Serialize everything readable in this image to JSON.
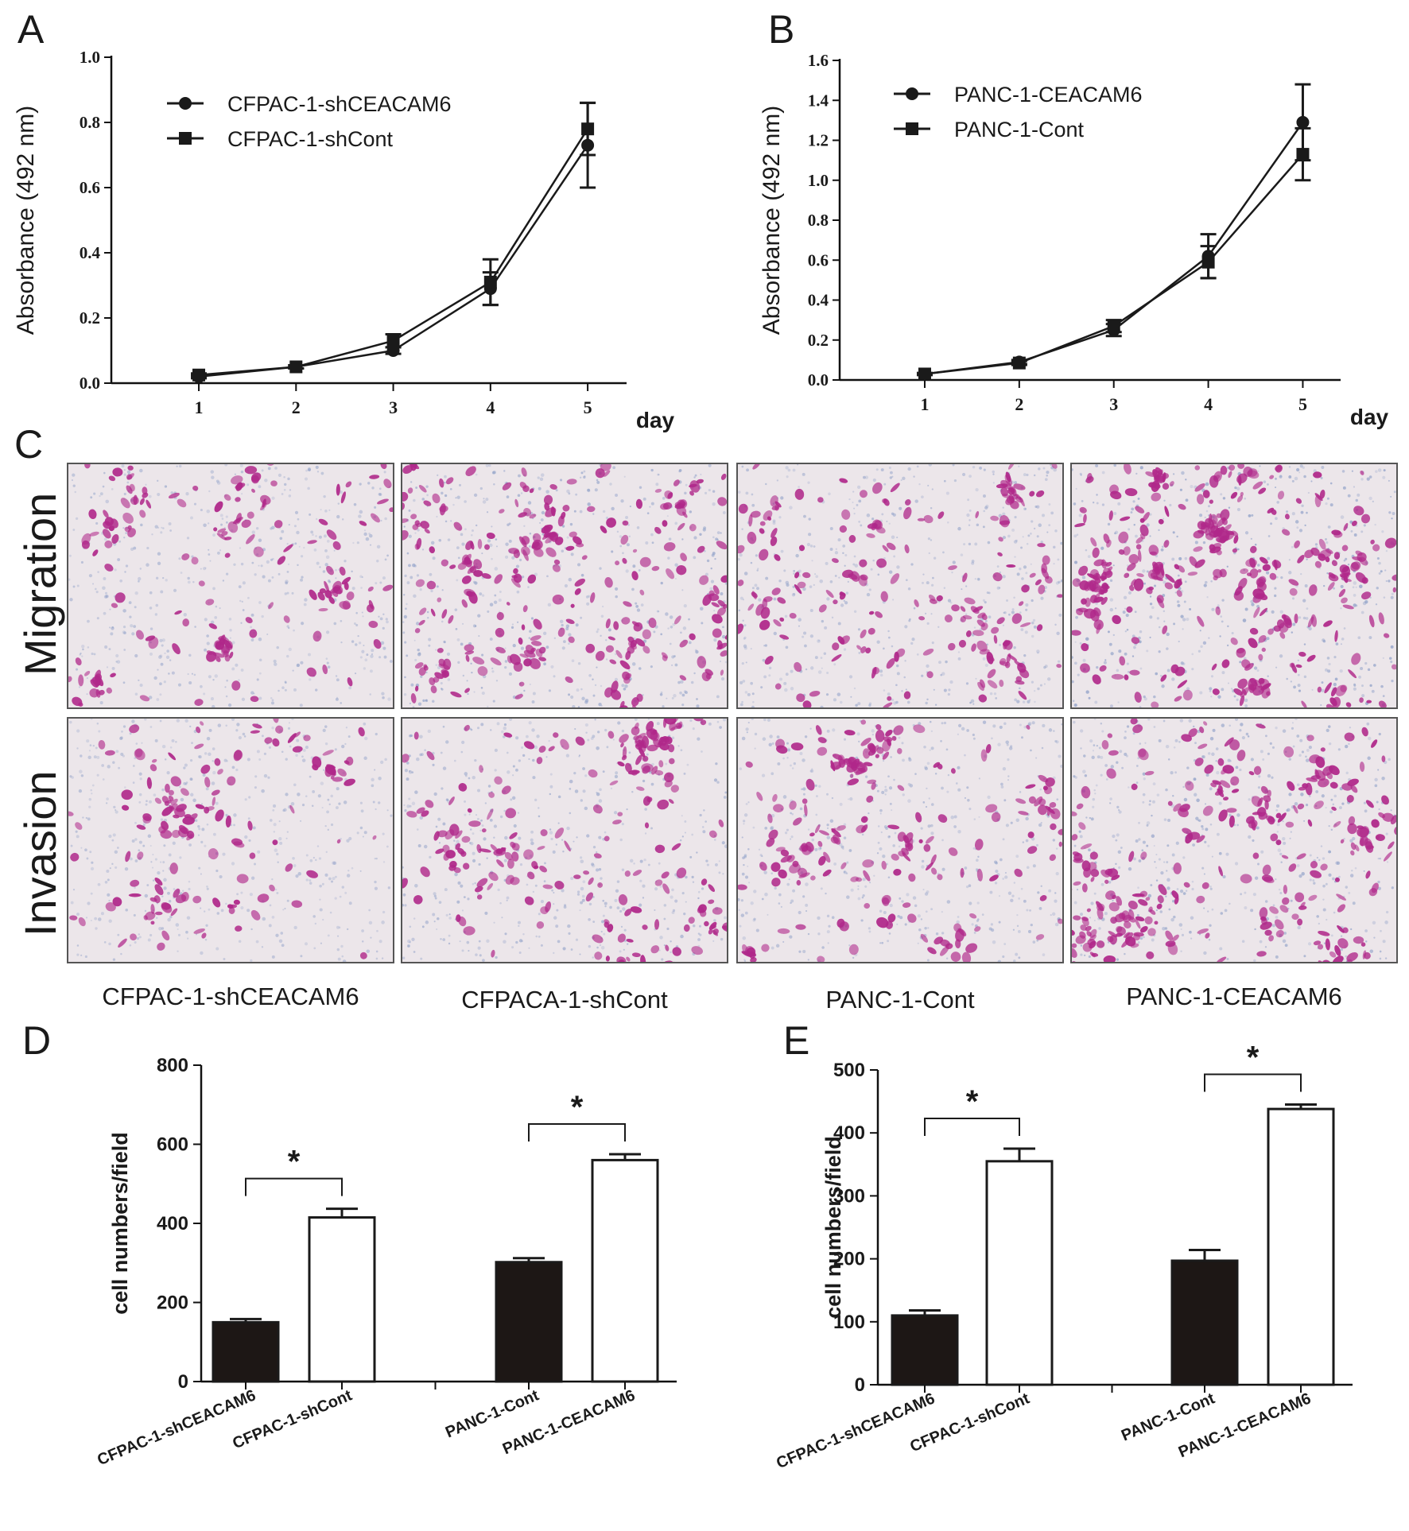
{
  "panels": {
    "A": {
      "letter": "A"
    },
    "B": {
      "letter": "B"
    },
    "C": {
      "letter": "C"
    },
    "D": {
      "letter": "D"
    },
    "E": {
      "letter": "E"
    }
  },
  "panel_c": {
    "rows": [
      "Migration",
      "Invasion"
    ],
    "columns": [
      "CFPAC-1-shCEACAM6",
      "CFPACA-1-shCont",
      "PANC-1-Cont",
      "PANC-1-CEACAM6"
    ],
    "stain_colors": {
      "background": "#ece6ea",
      "cell": "#b0288a",
      "membrane": "#8fa0c8"
    },
    "cell_density": [
      [
        0.35,
        0.75,
        0.45,
        1.0
      ],
      [
        0.25,
        0.55,
        0.45,
        0.75
      ]
    ]
  },
  "chart_data": [
    {
      "id": "A",
      "type": "line",
      "xlabel": "day",
      "ylabel": "Absorbance (492 nm)",
      "x": [
        1,
        2,
        3,
        4,
        5
      ],
      "xlim": [
        0.1,
        5.4
      ],
      "ylim": [
        0,
        1.0
      ],
      "yticks": [
        "0.0",
        "0.2",
        "0.4",
        "0.6",
        "0.8",
        "1.0"
      ],
      "legend_position": "top-left",
      "series": [
        {
          "name": "CFPAC-1-shCEACAM6",
          "marker": "circle",
          "values": [
            0.02,
            0.05,
            0.1,
            0.29,
            0.73
          ],
          "errors": [
            0.005,
            0.005,
            0.01,
            0.05,
            0.13
          ]
        },
        {
          "name": "CFPAC-1-shCont",
          "marker": "square",
          "values": [
            0.025,
            0.05,
            0.13,
            0.31,
            0.78
          ],
          "errors": [
            0.005,
            0.005,
            0.02,
            0.07,
            0.08
          ]
        }
      ]
    },
    {
      "id": "B",
      "type": "line",
      "xlabel": "day",
      "ylabel": "Absorbance (492 nm)",
      "x": [
        1,
        2,
        3,
        4,
        5
      ],
      "xlim": [
        0.1,
        5.4
      ],
      "ylim": [
        0,
        1.6
      ],
      "yticks": [
        "0.0",
        "0.2",
        "0.4",
        "0.6",
        "0.8",
        "1.0",
        "1.2",
        "1.4",
        "1.6"
      ],
      "legend_position": "top-left",
      "series": [
        {
          "name": "PANC-1-CEACAM6",
          "marker": "circle",
          "values": [
            0.03,
            0.09,
            0.25,
            0.62,
            1.29
          ],
          "errors": [
            0.005,
            0.01,
            0.03,
            0.11,
            0.19
          ]
        },
        {
          "name": "PANC-1-Cont",
          "marker": "square",
          "values": [
            0.03,
            0.085,
            0.27,
            0.59,
            1.13
          ],
          "errors": [
            0.005,
            0.01,
            0.03,
            0.08,
            0.13
          ]
        }
      ]
    },
    {
      "id": "D",
      "type": "bar",
      "ylabel": "cell numbers/field",
      "categories": [
        "CFPAC-1-shCEACAM6",
        "CFPAC-1-shCont",
        "PANC-1-Cont",
        "PANC-1-CEACAM6"
      ],
      "values": [
        150,
        415,
        302,
        560
      ],
      "errors": [
        8,
        22,
        10,
        15
      ],
      "fills": [
        "dark",
        "light",
        "dark",
        "light"
      ],
      "ylim": [
        0,
        800
      ],
      "yticks": [
        "0",
        "200",
        "400",
        "600",
        "800"
      ],
      "significance": [
        {
          "from": 0,
          "to": 1,
          "label": "*"
        },
        {
          "from": 2,
          "to": 3,
          "label": "*"
        }
      ]
    },
    {
      "id": "E",
      "type": "bar",
      "ylabel": "cell numbers/field",
      "categories": [
        "CFPAC-1-shCEACAM6",
        "CFPAC-1-shCont",
        "PANC-1-Cont",
        "PANC-1-CEACAM6"
      ],
      "values": [
        110,
        355,
        197,
        438
      ],
      "errors": [
        8,
        20,
        17,
        7
      ],
      "fills": [
        "dark",
        "light",
        "dark",
        "light"
      ],
      "ylim": [
        0,
        500
      ],
      "yticks": [
        "0",
        "100",
        "200",
        "300",
        "400",
        "500"
      ],
      "significance": [
        {
          "from": 0,
          "to": 1,
          "label": "*"
        },
        {
          "from": 2,
          "to": 3,
          "label": "*"
        }
      ]
    }
  ]
}
